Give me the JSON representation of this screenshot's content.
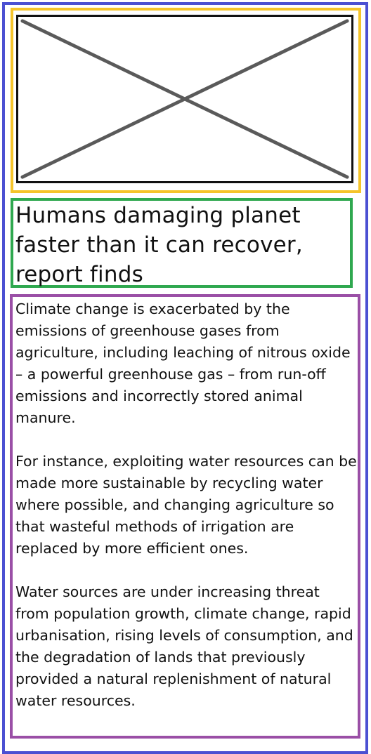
{
  "article": {
    "image": {
      "icon": "image-placeholder-icon"
    },
    "title": "Humans damaging planet faster than it can recover, report finds",
    "paragraphs": [
      "Climate change is exacerbated by the emissions of greenhouse gases from agriculture, including leaching of nitrous oxide – a powerful greenhouse gas – from run-off emissions and incorrectly stored animal manure.",
      "For instance, exploiting water resources can be made more sustainable by recycling water where possible, and changing agriculture so that wasteful methods of irrigation are replaced by more efficient ones.",
      "Water sources are under increasing threat from population growth, climate change, rapid urbanisation, rising levels of consumption, and the degradation of lands that previously provided a natural replenishment of natural water resources."
    ]
  },
  "colors": {
    "outer_frame": "#4b50d2",
    "image_frame": "#f5c42a",
    "title_frame": "#2fa84f",
    "body_frame": "#9a4fa6",
    "placeholder_stroke": "#5a5a5a"
  }
}
